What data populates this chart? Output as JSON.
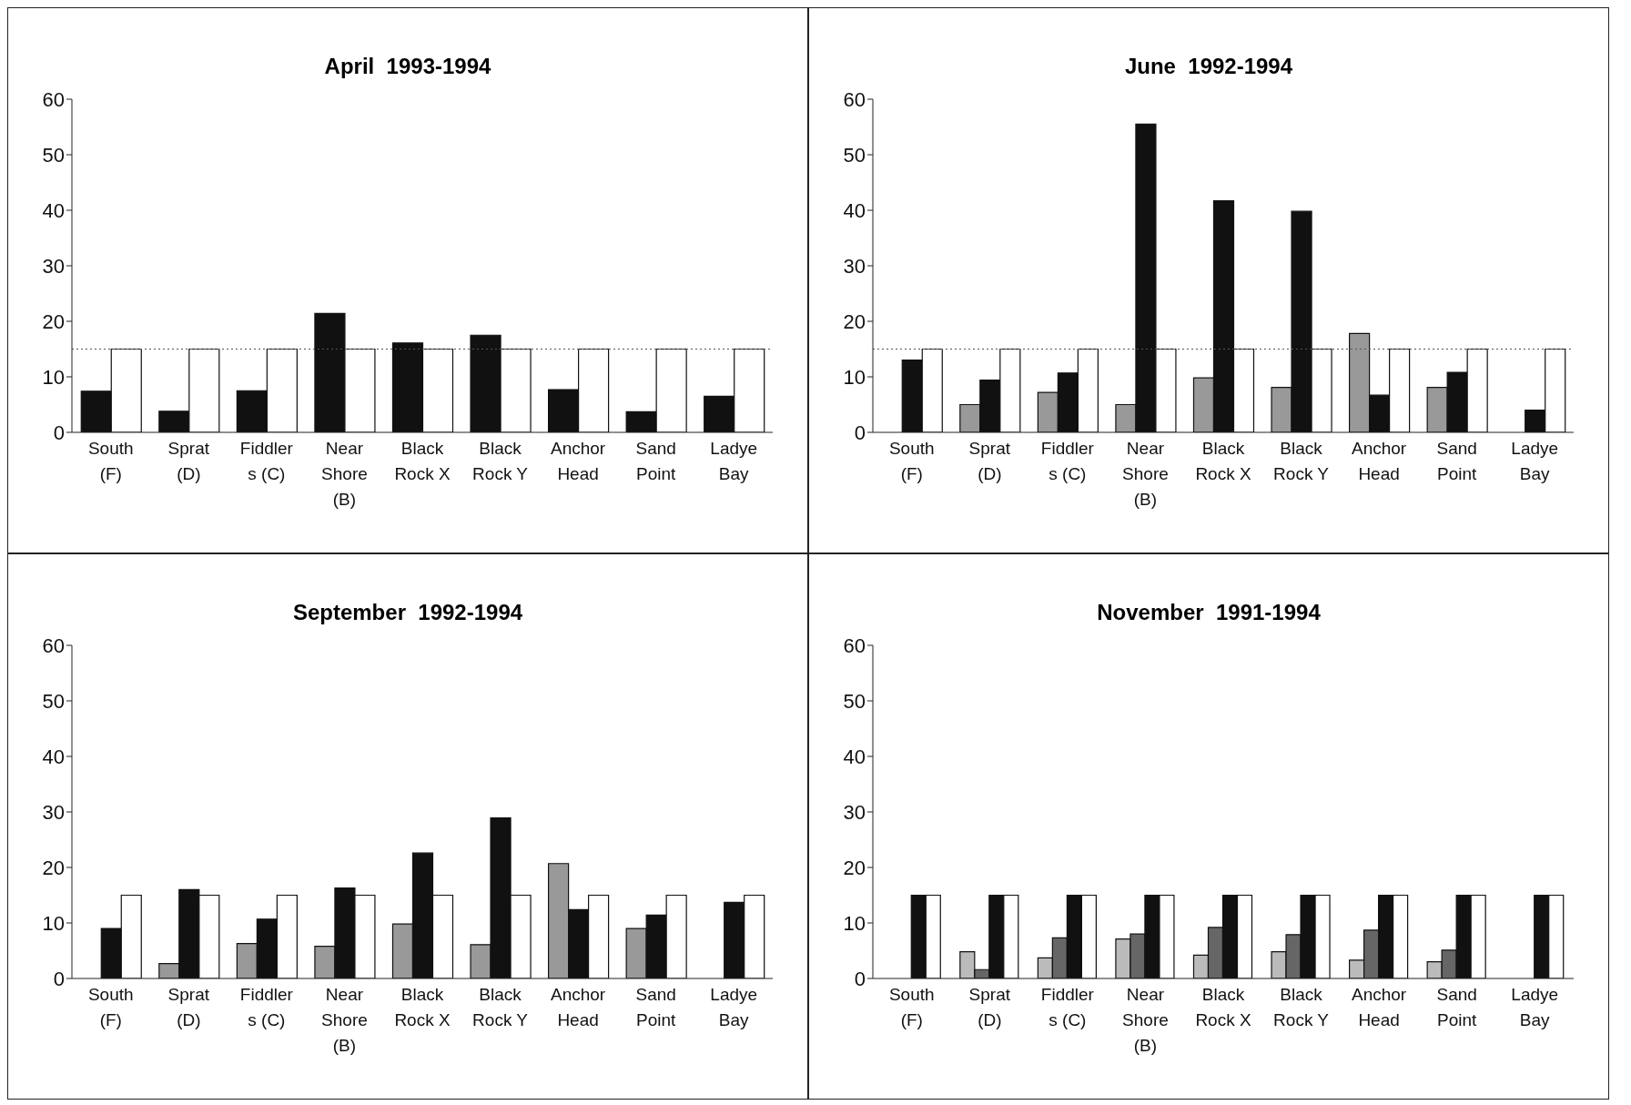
{
  "chart_data": [
    {
      "type": "bar",
      "title": "April  1993-1994",
      "categories": [
        "South (F)",
        "Sprat (D)",
        "Fiddler s (C)",
        "Near Shore (B)",
        "Black Rock X",
        "Black Rock Y",
        "Anchor Head",
        "Sand Point",
        "Ladye Bay"
      ],
      "series": [
        {
          "color": "#111111",
          "values": [
            7.4,
            3.8,
            7.5,
            21.4,
            16.1,
            17.5,
            7.7,
            3.7,
            6.5
          ]
        },
        {
          "color": "#ffffff",
          "values": [
            15,
            15,
            15,
            15,
            15,
            15,
            15,
            15,
            15
          ]
        }
      ],
      "ylim": [
        0,
        60
      ],
      "yticks": [
        0,
        10,
        20,
        30,
        40,
        50,
        60
      ],
      "grid": false,
      "legend": false,
      "ref_lines": [
        {
          "axis": "y",
          "value": 15,
          "line_style": "dotted",
          "color": "#555555"
        }
      ]
    },
    {
      "type": "bar",
      "title": "June  1992-1994",
      "categories": [
        "South (F)",
        "Sprat (D)",
        "Fiddler s (C)",
        "Near Shore (B)",
        "Black Rock X",
        "Black Rock Y",
        "Anchor Head",
        "Sand Point",
        "Ladye Bay"
      ],
      "series": [
        {
          "color": "#999999",
          "values": [
            null,
            5.0,
            7.2,
            5.0,
            9.8,
            8.1,
            17.8,
            8.1,
            null
          ]
        },
        {
          "color": "#111111",
          "values": [
            13.0,
            9.4,
            10.7,
            55.5,
            41.7,
            39.8,
            6.7,
            10.8,
            4.0
          ]
        },
        {
          "color": "#ffffff",
          "values": [
            15,
            15,
            15,
            15,
            15,
            15,
            15,
            15,
            15
          ]
        }
      ],
      "ylim": [
        0,
        60
      ],
      "yticks": [
        0,
        10,
        20,
        30,
        40,
        50,
        60
      ],
      "grid": false,
      "legend": false,
      "ref_lines": [
        {
          "axis": "y",
          "value": 15,
          "line_style": "dotted",
          "color": "#555555"
        }
      ]
    },
    {
      "type": "bar",
      "title": "September  1992-1994",
      "categories": [
        "South (F)",
        "Sprat (D)",
        "Fiddler s (C)",
        "Near Shore (B)",
        "Black Rock X",
        "Black Rock Y",
        "Anchor Head",
        "Sand Point",
        "Ladye Bay"
      ],
      "series": [
        {
          "color": "#999999",
          "values": [
            null,
            2.7,
            6.3,
            5.8,
            9.8,
            6.1,
            20.7,
            9.0,
            null
          ]
        },
        {
          "color": "#111111",
          "values": [
            9.0,
            16.0,
            10.7,
            16.3,
            22.6,
            28.9,
            12.4,
            11.4,
            13.7
          ]
        },
        {
          "color": "#ffffff",
          "values": [
            15,
            15,
            15,
            15,
            15,
            15,
            15,
            15,
            15
          ]
        }
      ],
      "ylim": [
        0,
        60
      ],
      "yticks": [
        0,
        10,
        20,
        30,
        40,
        50,
        60
      ],
      "grid": false,
      "legend": false
    },
    {
      "type": "bar",
      "title": "November  1991-1994",
      "categories": [
        "South (F)",
        "Sprat (D)",
        "Fiddler s (C)",
        "Near Shore (B)",
        "Black Rock X",
        "Black Rock Y",
        "Anchor Head",
        "Sand Point",
        "Ladye Bay"
      ],
      "series": [
        {
          "color": "#bbbbbb",
          "values": [
            null,
            4.8,
            3.7,
            7.1,
            4.2,
            4.8,
            3.3,
            3.0,
            null
          ]
        },
        {
          "color": "#666666",
          "values": [
            null,
            1.6,
            7.3,
            8.0,
            9.2,
            7.9,
            8.7,
            5.1,
            null
          ]
        },
        {
          "color": "#111111",
          "values": [
            15,
            15,
            15,
            15,
            15,
            15,
            15,
            15,
            15
          ]
        },
        {
          "color": "#ffffff",
          "values": [
            15,
            15,
            15,
            15,
            15,
            15,
            15,
            15,
            15
          ]
        }
      ],
      "ylim": [
        0,
        60
      ],
      "yticks": [
        0,
        10,
        20,
        30,
        40,
        50,
        60
      ],
      "grid": false,
      "legend": false
    }
  ]
}
